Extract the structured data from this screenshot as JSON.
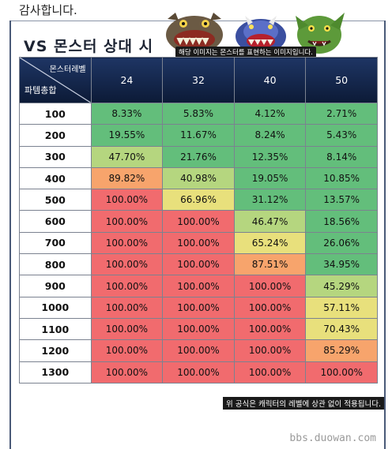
{
  "intro_text": "감사합니다.",
  "heading": "VS 몬스터 상대 시",
  "image_caption": "해당 이미지는 몬스터를 표현하는 이미지입니다.",
  "table": {
    "corner_top_label": "몬스터레벨",
    "corner_bottom_label": "파템총합",
    "columns": [
      "24",
      "32",
      "40",
      "50"
    ],
    "rows": [
      {
        "label": "100",
        "values": [
          "8.33%",
          "5.83%",
          "4.12%",
          "2.71%"
        ]
      },
      {
        "label": "200",
        "values": [
          "19.55%",
          "11.67%",
          "8.24%",
          "5.43%"
        ]
      },
      {
        "label": "300",
        "values": [
          "47.70%",
          "21.76%",
          "12.35%",
          "8.14%"
        ]
      },
      {
        "label": "400",
        "values": [
          "89.82%",
          "40.98%",
          "19.05%",
          "10.85%"
        ]
      },
      {
        "label": "500",
        "values": [
          "100.00%",
          "66.96%",
          "31.12%",
          "13.57%"
        ]
      },
      {
        "label": "600",
        "values": [
          "100.00%",
          "100.00%",
          "46.47%",
          "18.56%"
        ]
      },
      {
        "label": "700",
        "values": [
          "100.00%",
          "100.00%",
          "65.24%",
          "26.06%"
        ]
      },
      {
        "label": "800",
        "values": [
          "100.00%",
          "100.00%",
          "87.51%",
          "34.95%"
        ]
      },
      {
        "label": "900",
        "values": [
          "100.00%",
          "100.00%",
          "100.00%",
          "45.29%"
        ]
      },
      {
        "label": "1000",
        "values": [
          "100.00%",
          "100.00%",
          "100.00%",
          "57.11%"
        ]
      },
      {
        "label": "1100",
        "values": [
          "100.00%",
          "100.00%",
          "100.00%",
          "70.43%"
        ]
      },
      {
        "label": "1200",
        "values": [
          "100.00%",
          "100.00%",
          "100.00%",
          "85.29%"
        ]
      },
      {
        "label": "1300",
        "values": [
          "100.00%",
          "100.00%",
          "100.00%",
          "100.00%"
        ]
      }
    ]
  },
  "colors": {
    "low": "#63be7b",
    "mid_low": "#b5d67f",
    "mid": "#e8e07c",
    "high": "#f7a46c",
    "max": "#f16b6e",
    "header_bg": "#13264a"
  },
  "footnote": "위 공식은 캐릭터의 레벨에 상관 없이 적용됩니다.",
  "watermark": "bbs.duowan.com"
}
